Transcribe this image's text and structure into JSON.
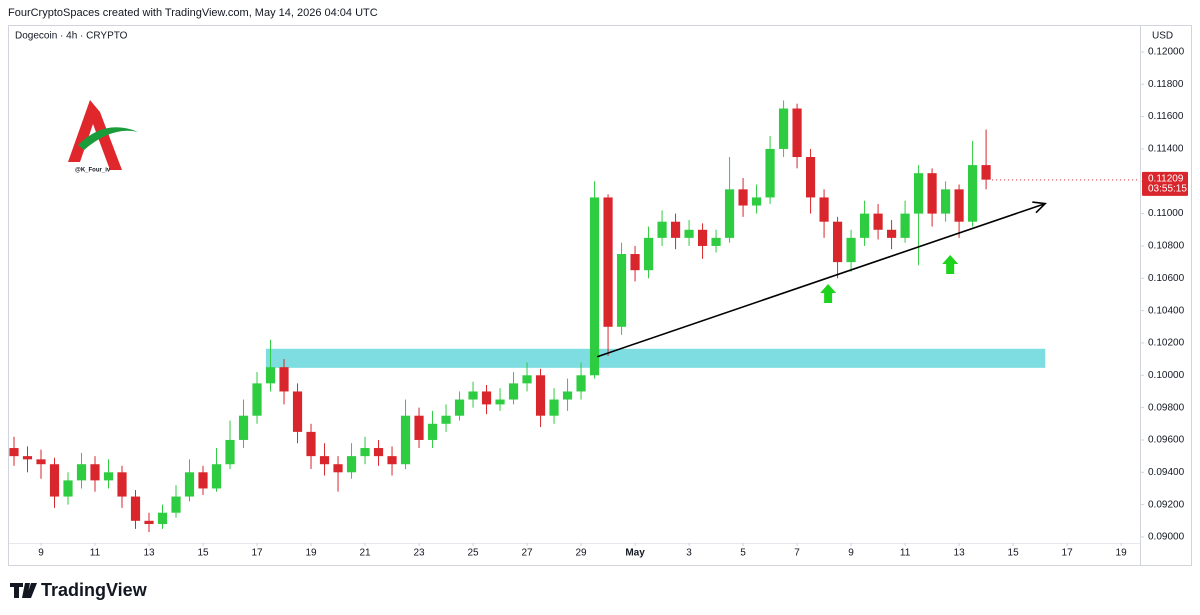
{
  "header": "FourCryptoSpaces created with TradingView.com, May 14, 2026 04:04 UTC",
  "brand": "TradingView",
  "watermark": "@K_Four_iv",
  "chart_data": {
    "type": "candlestick",
    "symbol": "Dogecoin · 4h · CRYPTO",
    "currency": "USD",
    "up_color": "#2ecc40",
    "down_color": "#d9262c",
    "grid": false,
    "xlim": [
      7.852,
      49.7
    ],
    "ylim": [
      0.08839,
      0.12148
    ],
    "xticks": [
      9,
      11,
      13,
      15,
      17,
      19,
      21,
      23,
      25,
      27,
      29,
      {
        "value": 31,
        "label": "May"
      },
      {
        "value": 33,
        "label": "3"
      },
      {
        "value": 35,
        "label": "5"
      },
      {
        "value": 37,
        "label": "7"
      },
      {
        "value": 39,
        "label": "9"
      },
      {
        "value": 41,
        "label": "11"
      },
      {
        "value": 43,
        "label": "13"
      },
      {
        "value": 45,
        "label": "15"
      },
      {
        "value": 47,
        "label": "17"
      },
      {
        "value": 49,
        "label": "19"
      }
    ],
    "yticks": [
      {
        "value": 0.09,
        "label": "0.09000"
      },
      {
        "value": 0.092,
        "label": "0.09200"
      },
      {
        "value": 0.094,
        "label": "0.09400"
      },
      {
        "value": 0.096,
        "label": "0.09600"
      },
      {
        "value": 0.098,
        "label": "0.09800"
      },
      {
        "value": 0.1,
        "label": "0.10000"
      },
      {
        "value": 0.102,
        "label": "0.10200"
      },
      {
        "value": 0.104,
        "label": "0.10400"
      },
      {
        "value": 0.106,
        "label": "0.10600"
      },
      {
        "value": 0.108,
        "label": "0.10800"
      },
      {
        "value": 0.11,
        "label": "0.11000"
      },
      {
        "value": 0.112,
        "label": "0.11200"
      },
      {
        "value": 0.114,
        "label": "0.11400"
      },
      {
        "value": 0.116,
        "label": "0.11600"
      },
      {
        "value": 0.118,
        "label": "0.11800"
      },
      {
        "value": 0.12,
        "label": "0.12000"
      }
    ],
    "x": [
      8,
      8.5,
      9,
      9.5,
      10,
      10.5,
      11,
      11.5,
      12,
      12.5,
      13,
      13.5,
      14,
      14.5,
      15,
      15.5,
      16,
      16.5,
      17,
      17.5,
      18,
      18.5,
      19,
      19.5,
      20,
      20.5,
      21,
      21.5,
      22,
      22.5,
      23,
      23.5,
      24,
      24.5,
      25,
      25.5,
      26,
      26.5,
      27,
      27.5,
      28,
      28.5,
      29,
      29.5,
      30,
      30.5,
      31,
      31.5,
      32,
      32.5,
      33,
      33.5,
      34,
      34.5,
      35,
      35.5,
      36,
      36.5,
      37,
      37.5,
      38,
      38.5,
      39,
      39.5,
      40,
      40.5,
      41,
      41.5,
      42,
      42.5,
      43,
      43.5,
      44
    ],
    "open": [
      0.0955,
      0.095,
      0.0948,
      0.0945,
      0.0925,
      0.0935,
      0.0945,
      0.0935,
      0.094,
      0.0925,
      0.091,
      0.0908,
      0.0915,
      0.0925,
      0.094,
      0.093,
      0.0945,
      0.096,
      0.0975,
      0.0995,
      0.1005,
      0.099,
      0.0965,
      0.095,
      0.0945,
      0.094,
      0.095,
      0.0955,
      0.095,
      0.0945,
      0.0975,
      0.096,
      0.097,
      0.0975,
      0.0985,
      0.099,
      0.0982,
      0.0985,
      0.0995,
      0.1,
      0.0975,
      0.0985,
      0.099,
      0.1,
      0.111,
      0.103,
      0.1075,
      0.1065,
      0.1085,
      0.1095,
      0.1085,
      0.109,
      0.108,
      0.1085,
      0.1115,
      0.1105,
      0.111,
      0.114,
      0.1165,
      0.1135,
      0.111,
      0.1095,
      0.107,
      0.1085,
      0.11,
      0.109,
      0.1085,
      0.11,
      0.1125,
      0.11,
      0.1115,
      0.1095,
      0.113
    ],
    "high": [
      0.0962,
      0.0956,
      0.0954,
      0.0949,
      0.094,
      0.0952,
      0.095,
      0.0948,
      0.0944,
      0.0929,
      0.0915,
      0.092,
      0.0932,
      0.0948,
      0.0944,
      0.0955,
      0.0972,
      0.0985,
      0.1002,
      0.1022,
      0.101,
      0.0995,
      0.097,
      0.0958,
      0.095,
      0.0958,
      0.0962,
      0.096,
      0.0956,
      0.0985,
      0.098,
      0.0978,
      0.0982,
      0.099,
      0.0996,
      0.0994,
      0.0992,
      0.1002,
      0.1008,
      0.1004,
      0.0992,
      0.0998,
      0.1008,
      0.112,
      0.1112,
      0.1082,
      0.108,
      0.1092,
      0.1102,
      0.11,
      0.1096,
      0.1094,
      0.109,
      0.1135,
      0.1122,
      0.1118,
      0.1148,
      0.117,
      0.1168,
      0.114,
      0.1115,
      0.1098,
      0.109,
      0.1108,
      0.1106,
      0.1096,
      0.1108,
      0.113,
      0.1128,
      0.112,
      0.1118,
      0.1145,
      0.1152
    ],
    "low": [
      0.0944,
      0.094,
      0.0936,
      0.0918,
      0.092,
      0.093,
      0.0928,
      0.093,
      0.0918,
      0.0905,
      0.0903,
      0.0905,
      0.0912,
      0.0922,
      0.0926,
      0.0928,
      0.0942,
      0.0955,
      0.097,
      0.099,
      0.0982,
      0.0958,
      0.0942,
      0.0938,
      0.0928,
      0.0936,
      0.0945,
      0.0944,
      0.0938,
      0.0942,
      0.0955,
      0.0955,
      0.0965,
      0.0972,
      0.098,
      0.0976,
      0.0978,
      0.0982,
      0.099,
      0.0968,
      0.097,
      0.0978,
      0.0985,
      0.0998,
      0.1012,
      0.1025,
      0.1058,
      0.106,
      0.108,
      0.1078,
      0.108,
      0.1072,
      0.1076,
      0.1082,
      0.1098,
      0.11,
      0.1106,
      0.1135,
      0.1128,
      0.11,
      0.1085,
      0.106,
      0.1064,
      0.108,
      0.1084,
      0.1078,
      0.1082,
      0.1068,
      0.1092,
      0.1095,
      0.1085,
      0.1092,
      0.1115
    ],
    "close": [
      0.095,
      0.0948,
      0.0945,
      0.0925,
      0.0935,
      0.0945,
      0.0935,
      0.094,
      0.0925,
      0.091,
      0.0908,
      0.0915,
      0.0925,
      0.094,
      0.093,
      0.0945,
      0.096,
      0.0975,
      0.0995,
      0.1005,
      0.099,
      0.0965,
      0.095,
      0.0945,
      0.094,
      0.095,
      0.0955,
      0.095,
      0.0945,
      0.0975,
      0.096,
      0.097,
      0.0975,
      0.0985,
      0.099,
      0.0982,
      0.0985,
      0.0995,
      0.1,
      0.0975,
      0.0985,
      0.099,
      0.1,
      0.111,
      0.103,
      0.1075,
      0.1065,
      0.1085,
      0.1095,
      0.1085,
      0.109,
      0.108,
      0.1085,
      0.1115,
      0.1105,
      0.111,
      0.114,
      0.1165,
      0.1135,
      0.111,
      0.1095,
      0.107,
      0.1085,
      0.11,
      0.109,
      0.1085,
      0.11,
      0.1125,
      0.11,
      0.1115,
      0.1095,
      0.113,
      0.1121
    ],
    "last_price": {
      "value": 0.11209,
      "label": "0.11209"
    },
    "countdown": "03:55:15",
    "support_zone": {
      "x": [
        17.33,
        46.19
      ],
      "y": [
        0.10046,
        0.10164
      ],
      "color": "#7edde0"
    },
    "trendline": {
      "x": [
        29.6,
        46.19
      ],
      "y": [
        0.10115,
        0.11062
      ],
      "color": "#000000"
    },
    "arrows": [
      {
        "x": 38.15,
        "y": 0.10565,
        "color": "#1ed31e"
      },
      {
        "x": 42.67,
        "y": 0.10744,
        "color": "#1ed31e"
      }
    ]
  }
}
